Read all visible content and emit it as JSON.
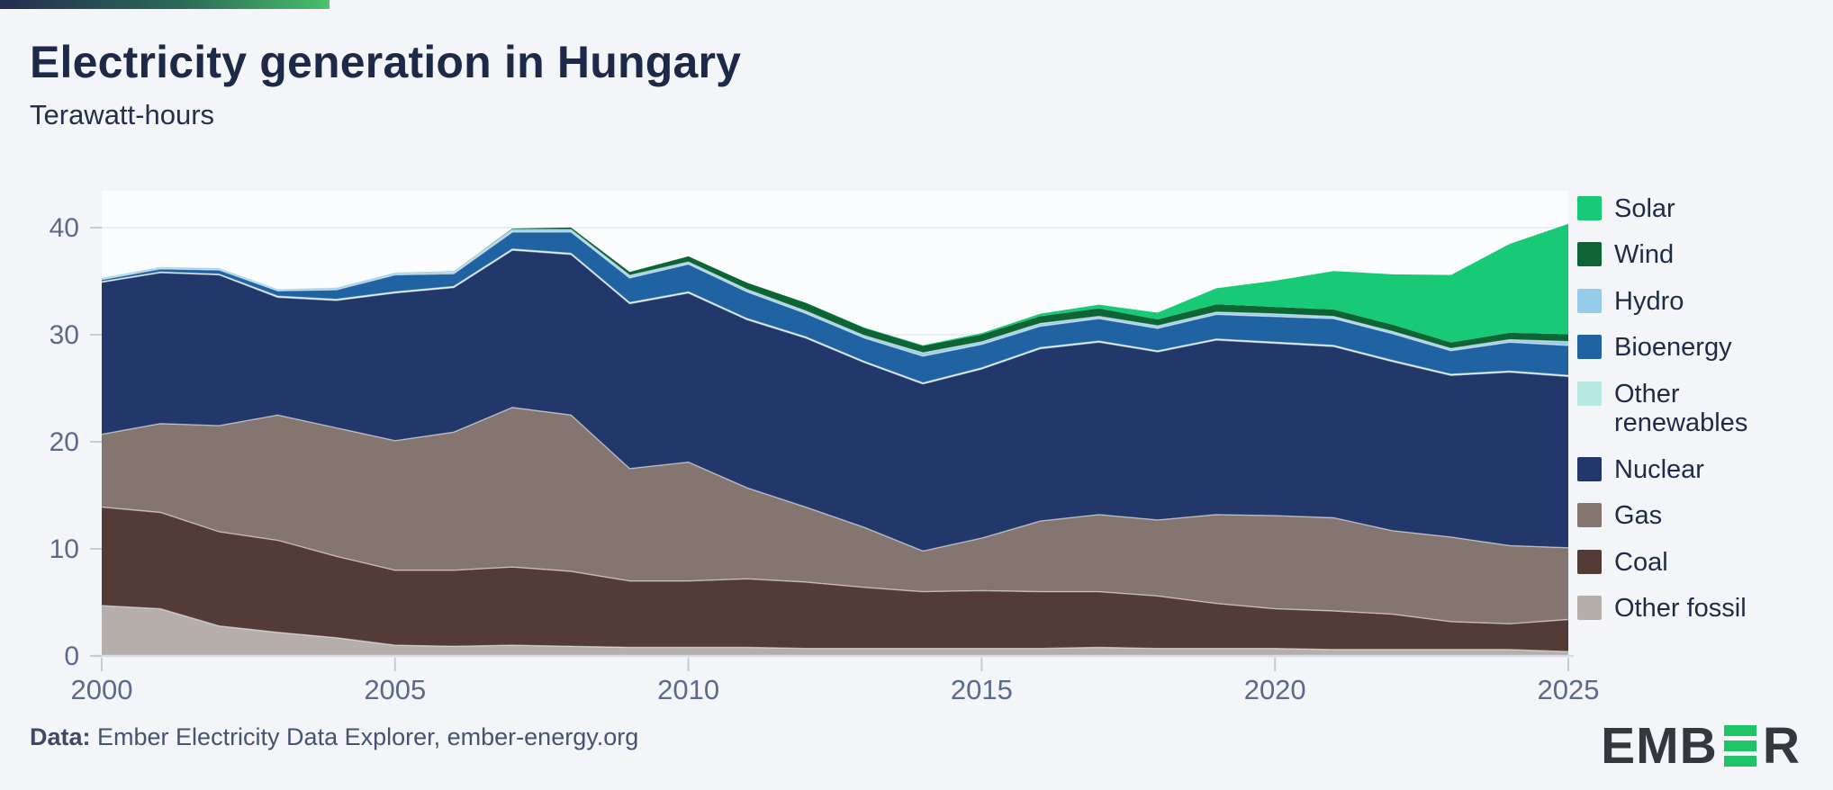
{
  "page": {
    "background": "#f3f5f9",
    "accent_bar_gradient": [
      "#242d52",
      "#2a6a58",
      "#47b969"
    ]
  },
  "header": {
    "title": "Electricity generation in Hungary",
    "subtitle": "Terawatt-hours"
  },
  "footer": {
    "label": "Data:",
    "text": " Ember Electricity Data Explorer, ember-energy.org"
  },
  "logo": {
    "text_left": "EMB",
    "text_right": "R",
    "bars_icon": "green-triple-bar-E",
    "bar_color": "#1fc466",
    "text_color": "#32383e"
  },
  "chart_data": {
    "type": "area",
    "stacked": true,
    "title": "Electricity generation in Hungary",
    "ylabel": "Terawatt-hours",
    "xlabel": "",
    "ylim": [
      0,
      40
    ],
    "grid": true,
    "legend_position": "right",
    "plot_background": "#fbfcfe",
    "gridline_color": "#e2e6f0",
    "baseline_color": "#d6dbe8",
    "tick_mark_color": "#c3cad9",
    "axis_label_color": "#5b6a88",
    "x": [
      2000,
      2001,
      2002,
      2003,
      2004,
      2005,
      2006,
      2007,
      2008,
      2009,
      2010,
      2011,
      2012,
      2013,
      2014,
      2015,
      2016,
      2017,
      2018,
      2019,
      2020,
      2021,
      2022,
      2023,
      2024,
      2025
    ],
    "x_ticks": [
      2000,
      2005,
      2010,
      2015,
      2020,
      2025
    ],
    "y_ticks": [
      0,
      10,
      20,
      30,
      40
    ],
    "series": [
      {
        "name": "Other fossil",
        "color": "#b5aeaa",
        "values": [
          4.7,
          4.4,
          2.8,
          2.2,
          1.7,
          1.0,
          0.9,
          1.0,
          0.9,
          0.8,
          0.8,
          0.8,
          0.7,
          0.7,
          0.7,
          0.7,
          0.7,
          0.8,
          0.7,
          0.7,
          0.7,
          0.6,
          0.6,
          0.6,
          0.6,
          0.4
        ]
      },
      {
        "name": "Coal",
        "color": "#533c37",
        "values": [
          9.2,
          9.0,
          8.8,
          8.6,
          7.6,
          7.0,
          7.1,
          7.3,
          7.0,
          6.2,
          6.2,
          6.4,
          6.2,
          5.7,
          5.3,
          5.4,
          5.3,
          5.2,
          4.9,
          4.2,
          3.7,
          3.6,
          3.3,
          2.6,
          2.4,
          3.0
        ]
      },
      {
        "name": "Gas",
        "color": "#847571",
        "values": [
          6.8,
          8.3,
          9.9,
          11.7,
          12.0,
          12.1,
          12.9,
          14.9,
          14.6,
          10.5,
          11.1,
          8.5,
          7.0,
          5.6,
          3.8,
          4.9,
          6.6,
          7.2,
          7.1,
          8.3,
          8.7,
          8.7,
          7.8,
          7.9,
          7.3,
          6.7
        ]
      },
      {
        "name": "Nuclear",
        "color": "#22386b",
        "values": [
          14.2,
          14.1,
          14.1,
          11.0,
          11.9,
          13.8,
          13.5,
          14.7,
          15.0,
          15.4,
          15.8,
          15.7,
          15.8,
          15.4,
          15.6,
          15.8,
          16.1,
          16.1,
          15.7,
          16.3,
          16.1,
          16.0,
          15.8,
          15.1,
          16.2,
          16.0
        ]
      },
      {
        "name": "Other renewables",
        "color": "#b8e8e2",
        "values": [
          0.05,
          0.05,
          0.05,
          0.1,
          0.1,
          0.1,
          0.1,
          0.1,
          0.1,
          0.1,
          0.1,
          0.1,
          0.1,
          0.1,
          0.1,
          0.1,
          0.1,
          0.1,
          0.1,
          0.1,
          0.1,
          0.1,
          0.1,
          0.1,
          0.1,
          0.1
        ]
      },
      {
        "name": "Bioenergy",
        "color": "#2063a2",
        "values": [
          0.2,
          0.3,
          0.4,
          0.5,
          0.9,
          1.6,
          1.2,
          1.6,
          2.0,
          2.3,
          2.6,
          2.5,
          2.2,
          2.2,
          2.5,
          2.2,
          2.0,
          2.1,
          2.1,
          2.3,
          2.4,
          2.5,
          2.5,
          2.2,
          2.7,
          2.8
        ]
      },
      {
        "name": "Hydro",
        "color": "#96cbea",
        "values": [
          0.18,
          0.19,
          0.19,
          0.17,
          0.21,
          0.2,
          0.19,
          0.21,
          0.21,
          0.23,
          0.19,
          0.22,
          0.21,
          0.21,
          0.3,
          0.23,
          0.25,
          0.21,
          0.22,
          0.21,
          0.24,
          0.2,
          0.2,
          0.21,
          0.23,
          0.35
        ]
      },
      {
        "name": "Wind",
        "color": "#0d6434",
        "values": [
          0,
          0,
          0,
          0,
          0,
          0.01,
          0.04,
          0.11,
          0.2,
          0.33,
          0.53,
          0.63,
          0.77,
          0.72,
          0.66,
          0.69,
          0.68,
          0.75,
          0.61,
          0.73,
          0.66,
          0.65,
          0.64,
          0.57,
          0.65,
          0.7
        ]
      },
      {
        "name": "Solar",
        "color": "#18c975",
        "values": [
          0,
          0,
          0,
          0,
          0,
          0,
          0,
          0,
          0,
          0,
          0,
          0,
          0.01,
          0.03,
          0.06,
          0.13,
          0.24,
          0.35,
          0.63,
          1.5,
          2.44,
          3.6,
          4.7,
          6.3,
          8.3,
          10.3
        ]
      }
    ]
  }
}
